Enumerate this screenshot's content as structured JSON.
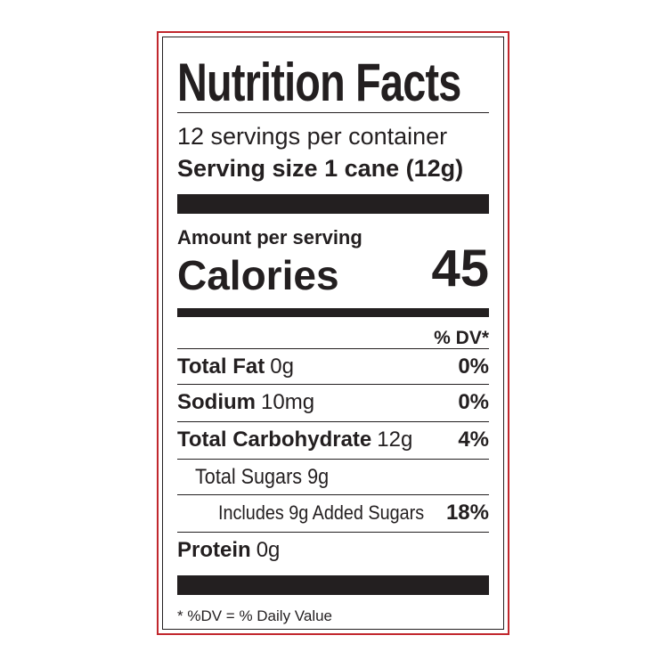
{
  "label": {
    "title": "Nutrition Facts",
    "servings": "12 servings per container",
    "serving_size_label": "Serving size",
    "serving_size": "1 cane (12g)",
    "amount_per_serving": "Amount per serving",
    "calories_label": "Calories",
    "calories": "45",
    "dv_header": "% DV*",
    "rows": [
      {
        "name": "Total Fat",
        "amount": "0g",
        "dv": "0%"
      },
      {
        "name": "Sodium",
        "amount": "10mg",
        "dv": "0%"
      },
      {
        "name": "Total Carbohydrate",
        "amount": "12g",
        "dv": "4%"
      },
      {
        "name": "Total Sugars 9g"
      },
      {
        "name": "Includes 9g Added Sugars",
        "dv": "18%"
      },
      {
        "name": "Protein",
        "amount": "0g"
      }
    ],
    "footnote": "* %DV = % Daily Value"
  }
}
